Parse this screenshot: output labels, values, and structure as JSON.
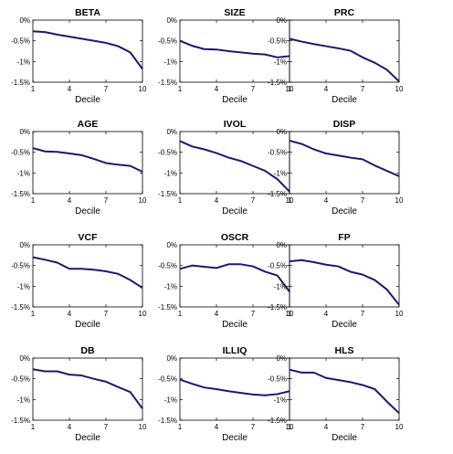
{
  "chart_data": [
    {
      "type": "line",
      "title": "BETA",
      "xlabel": "Decile",
      "x": [
        1,
        2,
        3,
        4,
        5,
        6,
        7,
        8,
        9,
        10
      ],
      "y": [
        -0.27,
        -0.29,
        -0.35,
        -0.4,
        -0.45,
        -0.5,
        -0.55,
        -0.63,
        -0.78,
        -1.18
      ],
      "xlim": [
        1,
        10
      ],
      "ylim": [
        -1.5,
        0
      ],
      "xticks": [
        "1",
        "4",
        "7",
        "10"
      ],
      "yticks": [
        "0%",
        "-0.5%",
        "-1%",
        "-1.5%"
      ],
      "color": "#1a1a6e"
    },
    {
      "type": "line",
      "title": "SIZE",
      "xlabel": "Decile",
      "x": [
        1,
        2,
        3,
        4,
        5,
        6,
        7,
        8,
        9,
        10
      ],
      "y": [
        -0.5,
        -0.62,
        -0.7,
        -0.71,
        -0.75,
        -0.78,
        -0.81,
        -0.83,
        -0.9,
        -0.87
      ],
      "xlim": [
        1,
        10
      ],
      "ylim": [
        -1.5,
        0
      ],
      "xticks": [
        "1",
        "4",
        "7",
        "10"
      ],
      "yticks": [
        "0%",
        "-0.5%",
        "-1%",
        "-1.5%"
      ],
      "color": "#1a1a6e"
    },
    {
      "type": "line",
      "title": "PRC",
      "xlabel": "Decile",
      "x": [
        1,
        2,
        3,
        4,
        5,
        6,
        7,
        8,
        9,
        10
      ],
      "y": [
        -0.45,
        -0.52,
        -0.58,
        -0.63,
        -0.68,
        -0.74,
        -0.9,
        -1.03,
        -1.2,
        -1.48
      ],
      "xlim": [
        1,
        10
      ],
      "ylim": [
        -1.5,
        0
      ],
      "xticks": [
        "1",
        "4",
        "7",
        "10"
      ],
      "yticks": [
        "0%",
        "-0.5%",
        "-1%",
        "-1.5%"
      ],
      "color": "#1a1a6e"
    },
    {
      "type": "line",
      "title": "AGE",
      "xlabel": "Decile",
      "x": [
        1,
        2,
        3,
        4,
        5,
        6,
        7,
        8,
        9,
        10
      ],
      "y": [
        -0.4,
        -0.48,
        -0.49,
        -0.53,
        -0.57,
        -0.66,
        -0.76,
        -0.8,
        -0.83,
        -0.97
      ],
      "xlim": [
        1,
        10
      ],
      "ylim": [
        -1.5,
        0
      ],
      "xticks": [
        "1",
        "4",
        "7",
        "10"
      ],
      "yticks": [
        "0%",
        "-0.5%",
        "-1%",
        "-1.5%"
      ],
      "color": "#1a1a6e"
    },
    {
      "type": "line",
      "title": "IVOL",
      "xlabel": "Decile",
      "x": [
        1,
        2,
        3,
        4,
        5,
        6,
        7,
        8,
        9,
        10
      ],
      "y": [
        -0.23,
        -0.36,
        -0.43,
        -0.52,
        -0.63,
        -0.71,
        -0.83,
        -0.95,
        -1.15,
        -1.45
      ],
      "xlim": [
        1,
        10
      ],
      "ylim": [
        -1.5,
        0
      ],
      "xticks": [
        "1",
        "4",
        "7",
        "10"
      ],
      "yticks": [
        "0%",
        "-0.5%",
        "-1%",
        "-1.5%"
      ],
      "color": "#1a1a6e"
    },
    {
      "type": "line",
      "title": "DISP",
      "xlabel": "Decile",
      "x": [
        1,
        2,
        3,
        4,
        5,
        6,
        7,
        8,
        9,
        10
      ],
      "y": [
        -0.22,
        -0.3,
        -0.43,
        -0.53,
        -0.58,
        -0.63,
        -0.67,
        -0.82,
        -0.95,
        -1.08
      ],
      "xlim": [
        1,
        10
      ],
      "ylim": [
        -1.5,
        0
      ],
      "xticks": [
        "1",
        "4",
        "7",
        "10"
      ],
      "yticks": [
        "0%",
        "-0.5%",
        "-1%",
        "-1.5%"
      ],
      "color": "#1a1a6e"
    },
    {
      "type": "line",
      "title": "VCF",
      "xlabel": "Decile",
      "x": [
        1,
        2,
        3,
        4,
        5,
        6,
        7,
        8,
        9,
        10
      ],
      "y": [
        -0.3,
        -0.36,
        -0.43,
        -0.58,
        -0.58,
        -0.6,
        -0.64,
        -0.7,
        -0.85,
        -1.04
      ],
      "xlim": [
        1,
        10
      ],
      "ylim": [
        -1.5,
        0
      ],
      "xticks": [
        "1",
        "4",
        "7",
        "10"
      ],
      "yticks": [
        "0%",
        "-0.5%",
        "-1%",
        "-1.5%"
      ],
      "color": "#1a1a6e"
    },
    {
      "type": "line",
      "title": "OSCR",
      "xlabel": "Decile",
      "x": [
        1,
        2,
        3,
        4,
        5,
        6,
        7,
        8,
        9,
        10
      ],
      "y": [
        -0.58,
        -0.5,
        -0.53,
        -0.56,
        -0.47,
        -0.47,
        -0.52,
        -0.65,
        -0.74,
        -1.13
      ],
      "xlim": [
        1,
        10
      ],
      "ylim": [
        -1.5,
        0
      ],
      "xticks": [
        "1",
        "4",
        "7",
        "10"
      ],
      "yticks": [
        "0%",
        "-0.5%",
        "-1%",
        "-1.5%"
      ],
      "color": "#1a1a6e"
    },
    {
      "type": "line",
      "title": "FP",
      "xlabel": "Decile",
      "x": [
        1,
        2,
        3,
        4,
        5,
        6,
        7,
        8,
        9,
        10
      ],
      "y": [
        -0.4,
        -0.37,
        -0.42,
        -0.48,
        -0.52,
        -0.65,
        -0.72,
        -0.85,
        -1.08,
        -1.45
      ],
      "xlim": [
        1,
        10
      ],
      "ylim": [
        -1.5,
        0
      ],
      "xticks": [
        "1",
        "4",
        "7",
        "10"
      ],
      "yticks": [
        "0%",
        "-0.5%",
        "-1%",
        "-1.5%"
      ],
      "color": "#1a1a6e"
    },
    {
      "type": "line",
      "title": "DB",
      "xlabel": "Decile",
      "x": [
        1,
        2,
        3,
        4,
        5,
        6,
        7,
        8,
        9,
        10
      ],
      "y": [
        -0.27,
        -0.32,
        -0.32,
        -0.4,
        -0.42,
        -0.5,
        -0.57,
        -0.7,
        -0.82,
        -1.22
      ],
      "xlim": [
        1,
        10
      ],
      "ylim": [
        -1.5,
        0
      ],
      "xticks": [
        "1",
        "4",
        "7",
        "10"
      ],
      "yticks": [
        "0%",
        "-0.5%",
        "-1%",
        "-1.5%"
      ],
      "color": "#1a1a6e"
    },
    {
      "type": "line",
      "title": "ILLIQ",
      "xlabel": "Decile",
      "x": [
        1,
        2,
        3,
        4,
        5,
        6,
        7,
        8,
        9,
        10
      ],
      "y": [
        -0.52,
        -0.62,
        -0.71,
        -0.75,
        -0.8,
        -0.84,
        -0.88,
        -0.9,
        -0.87,
        -0.8
      ],
      "xlim": [
        1,
        10
      ],
      "ylim": [
        -1.5,
        0
      ],
      "xticks": [
        "1",
        "4",
        "7",
        "10"
      ],
      "yticks": [
        "0%",
        "-0.5%",
        "-1%",
        "-1.5%"
      ],
      "color": "#1a1a6e"
    },
    {
      "type": "line",
      "title": "HLS",
      "xlabel": "Decile",
      "x": [
        1,
        2,
        3,
        4,
        5,
        6,
        7,
        8,
        9,
        10
      ],
      "y": [
        -0.28,
        -0.35,
        -0.35,
        -0.48,
        -0.53,
        -0.58,
        -0.65,
        -0.75,
        -1.05,
        -1.33
      ],
      "xlim": [
        1,
        10
      ],
      "ylim": [
        -1.5,
        0
      ],
      "xticks": [
        "1",
        "4",
        "7",
        "10"
      ],
      "yticks": [
        "0%",
        "-0.5%",
        "-1%",
        "-1.5%"
      ],
      "color": "#1a1a6e"
    }
  ]
}
